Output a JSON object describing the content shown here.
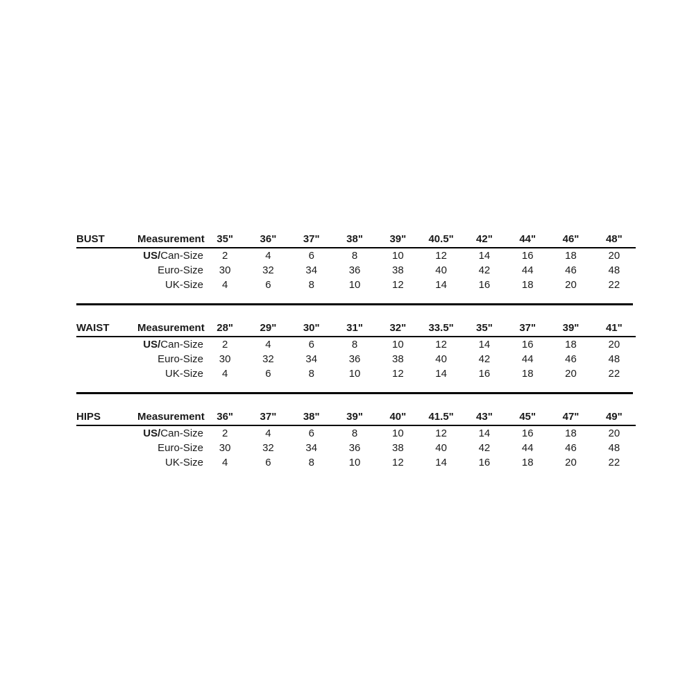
{
  "page": {
    "background_color": "#ffffff",
    "text_color": "#1a1a1a",
    "line_color": "#000000"
  },
  "sections": [
    {
      "label": "BUST",
      "measurement_label": "Measurement",
      "measurements": [
        "35\"",
        "36\"",
        "37\"",
        "38\"",
        "39\"",
        "40.5\"",
        "42\"",
        "44\"",
        "46\"",
        "48\""
      ],
      "rows": [
        {
          "label_bold": "US/",
          "label_rest": "Can-Size",
          "values": [
            "2",
            "4",
            "6",
            "8",
            "10",
            "12",
            "14",
            "16",
            "18",
            "20"
          ]
        },
        {
          "label_bold": "",
          "label_rest": "Euro-Size",
          "values": [
            "30",
            "32",
            "34",
            "36",
            "38",
            "40",
            "42",
            "44",
            "46",
            "48"
          ]
        },
        {
          "label_bold": "",
          "label_rest": "UK-Size",
          "values": [
            "4",
            "6",
            "8",
            "10",
            "12",
            "14",
            "16",
            "18",
            "20",
            "22"
          ]
        }
      ]
    },
    {
      "label": "WAIST",
      "measurement_label": "Measurement",
      "measurements": [
        "28\"",
        "29\"",
        "30\"",
        "31\"",
        "32\"",
        "33.5\"",
        "35\"",
        "37\"",
        "39\"",
        "41\""
      ],
      "rows": [
        {
          "label_bold": "US/",
          "label_rest": "Can-Size",
          "values": [
            "2",
            "4",
            "6",
            "8",
            "10",
            "12",
            "14",
            "16",
            "18",
            "20"
          ]
        },
        {
          "label_bold": "",
          "label_rest": "Euro-Size",
          "values": [
            "30",
            "32",
            "34",
            "36",
            "38",
            "40",
            "42",
            "44",
            "46",
            "48"
          ]
        },
        {
          "label_bold": "",
          "label_rest": "UK-Size",
          "values": [
            "4",
            "6",
            "8",
            "10",
            "12",
            "14",
            "16",
            "18",
            "20",
            "22"
          ]
        }
      ]
    },
    {
      "label": "HIPS",
      "measurement_label": "Measurement",
      "measurements": [
        "36\"",
        "37\"",
        "38\"",
        "39\"",
        "40\"",
        "41.5\"",
        "43\"",
        "45\"",
        "47\"",
        "49\""
      ],
      "rows": [
        {
          "label_bold": "US/",
          "label_rest": "Can-Size",
          "values": [
            "2",
            "4",
            "6",
            "8",
            "10",
            "12",
            "14",
            "16",
            "18",
            "20"
          ]
        },
        {
          "label_bold": "",
          "label_rest": "Euro-Size",
          "values": [
            "30",
            "32",
            "34",
            "36",
            "38",
            "40",
            "42",
            "44",
            "46",
            "48"
          ]
        },
        {
          "label_bold": "",
          "label_rest": "UK-Size",
          "values": [
            "4",
            "6",
            "8",
            "10",
            "12",
            "14",
            "16",
            "18",
            "20",
            "22"
          ]
        }
      ]
    }
  ]
}
